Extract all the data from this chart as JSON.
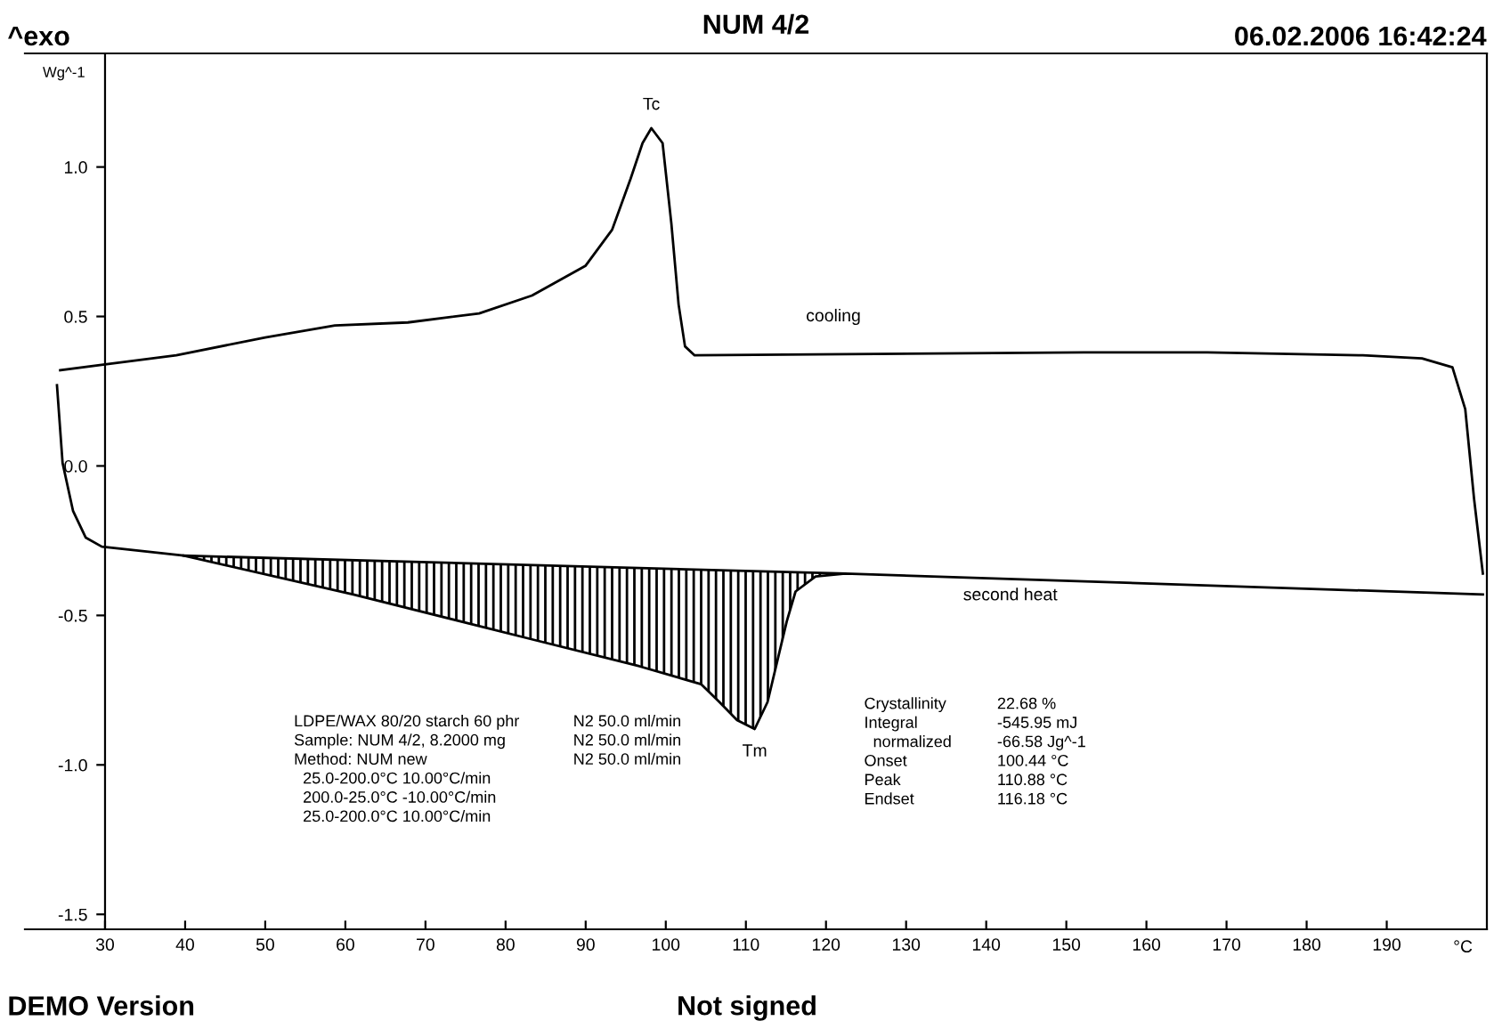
{
  "chart_data": {
    "type": "line",
    "title": "NUM 4/2",
    "xlabel": "°C",
    "ylabel": "Wg^-1",
    "xlim": [
      20,
      202.5
    ],
    "ylim": [
      -1.55,
      1.38
    ],
    "xticks": [
      30,
      40,
      50,
      60,
      70,
      80,
      90,
      100,
      110,
      120,
      130,
      140,
      150,
      160,
      170,
      180,
      190
    ],
    "yticks": [
      -1.5,
      {
        "value": -1.0,
        "label": "-1.0"
      },
      -0.5,
      {
        "value": 0.0,
        "label": "0.0"
      },
      0.5,
      {
        "value": 1.0,
        "label": "1.0"
      }
    ],
    "grid": false,
    "legend": false,
    "line_style": "solid",
    "marker": "none",
    "series": [
      {
        "color": "#000000",
        "x": [
          24.4,
          30,
          38.9,
          50,
          58.7,
          67.8,
          76.7,
          83.3,
          90,
          93.3,
          95.6,
          97.1,
          98.2,
          99.6,
          100.7,
          101.6,
          102.4,
          103.6,
          152.2,
          167.6,
          187,
          194.4,
          198.2,
          199.8,
          200.9,
          202
        ],
        "values": [
          0.32,
          0.34,
          0.37,
          0.43,
          0.47,
          0.48,
          0.51,
          0.57,
          0.67,
          0.79,
          0.96,
          1.08,
          1.13,
          1.08,
          0.81,
          0.54,
          0.4,
          0.37,
          0.38,
          0.38,
          0.37,
          0.36,
          0.33,
          0.19,
          -0.11,
          -0.36
        ]
      },
      {
        "color": "#000000",
        "x": [
          24,
          24.7,
          26,
          27.6,
          29.6,
          39.8,
          61,
          83.3,
          96.7,
          104.4,
          106.7,
          108.9,
          111.1,
          112.7,
          115.1,
          116.2,
          118.7,
          122.4,
          202
        ],
        "values": [
          0.27,
          0.01,
          -0.15,
          -0.24,
          -0.27,
          -0.3,
          -0.43,
          -0.58,
          -0.67,
          -0.73,
          -0.79,
          -0.85,
          -0.88,
          -0.79,
          -0.52,
          -0.42,
          -0.37,
          -0.36,
          -0.43
        ]
      },
      {
        "type": "line",
        "color": "#000000",
        "x": [
          39.8,
          122.4
        ],
        "values": [
          -0.3,
          -0.36
        ]
      }
    ],
    "annotations": [
      "^exo",
      "06.02.2006 16:42:24",
      "DEMO Version",
      "Not signed",
      {
        "text": "Tc",
        "x": 98.2,
        "y": 1.13
      },
      "cooling",
      "second heat",
      {
        "text": "Tm",
        "x": 111.1,
        "y": -0.88
      },
      "LDPE/WAX 80/20 starch 60 phr\nSample: NUM 4/2, 8.2000 mg\nMethod: NUM new\n  25.0-200.0°C 10.00°C/min\n  200.0-25.0°C -10.00°C/min\n  25.0-200.0°C 10.00°C/min",
      "N2 50.0 ml/min\nN2 50.0 ml/min\nN2 50.0 ml/min",
      "Crystallinity\nIntegral\n  normalized\nOnset\nPeak\nEndset",
      "22.68 %\n-545.95 mJ\n-66.58 Jg^-1\n100.44 °C\n110.88 °C\n116.18 °C"
    ]
  }
}
